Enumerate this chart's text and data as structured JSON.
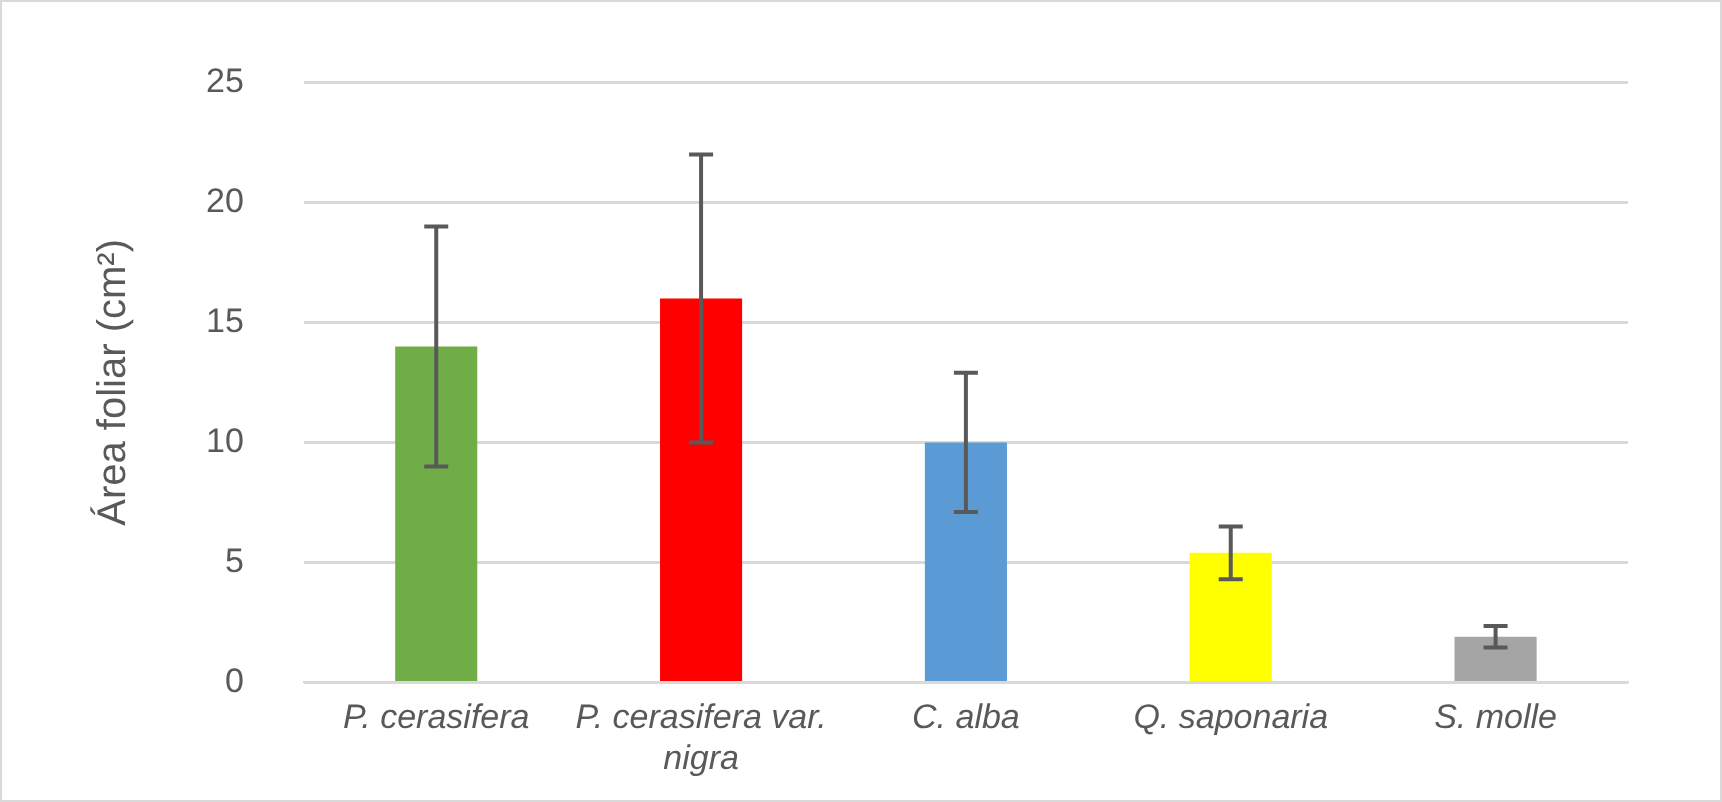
{
  "chart_data": {
    "type": "bar",
    "ylabel": "Área foliar (cm²)",
    "categories": [
      "P. cerasifera",
      "P. cerasifera var. nigra",
      "C. alba",
      "Q. saponaria",
      "S. molle"
    ],
    "values": [
      14,
      16,
      10,
      5.4,
      1.9
    ],
    "colors": [
      "#70ad47",
      "#ff0000",
      "#5b9bd5",
      "#ffff00",
      "#a5a5a5"
    ],
    "errors": [
      5,
      6,
      2.9,
      1.1,
      0.45
    ],
    "ylim": [
      0,
      25
    ],
    "yticks": [
      0,
      5,
      10,
      15,
      20,
      25
    ],
    "grid": "y",
    "legend": false
  }
}
